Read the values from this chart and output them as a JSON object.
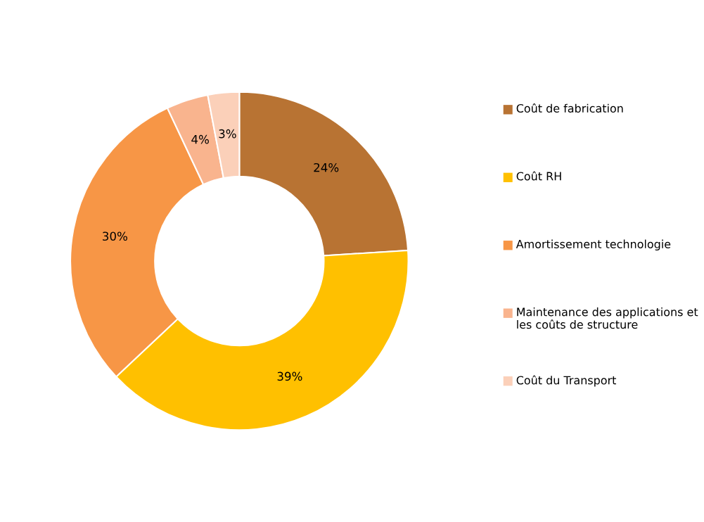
{
  "chart_data": {
    "type": "donut",
    "categories": [
      "Coût de fabrication",
      "Coût RH",
      "Amortissement technologie",
      "Maintenance des applications et les coûts de structure",
      "Coût du Transport"
    ],
    "values": [
      24,
      39,
      30,
      4,
      3
    ],
    "colors": [
      "#b87333",
      "#ffc000",
      "#f79646",
      "#f9b48e",
      "#fbd0b9"
    ],
    "value_labels": [
      "24%",
      "39%",
      "30%",
      "4%",
      "3%"
    ],
    "legend": "right"
  }
}
